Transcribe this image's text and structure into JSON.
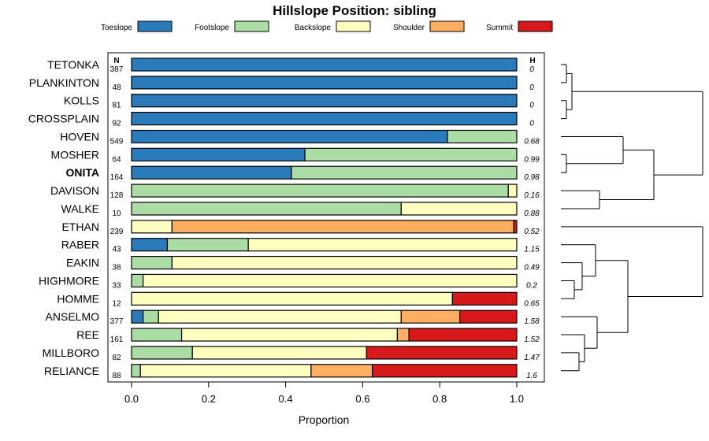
{
  "chart_data": {
    "type": "stacked-bar-horizontal",
    "title": "Hillslope Position: sibling",
    "xlabel": "Proportion",
    "xlim": [
      0,
      1
    ],
    "xticks": [
      "0.0",
      "0.2",
      "0.4",
      "0.6",
      "0.8",
      "1.0"
    ],
    "n_header": "N",
    "h_header": "H",
    "legend": [
      {
        "name": "Toeslope",
        "color": "#2B7BBA"
      },
      {
        "name": "Footslope",
        "color": "#ABDDA4"
      },
      {
        "name": "Backslope",
        "color": "#FFFFBF"
      },
      {
        "name": "Shoulder",
        "color": "#FDAE61"
      },
      {
        "name": "Summit",
        "color": "#D7191C"
      }
    ],
    "rows": [
      {
        "name": "TETONKA",
        "n": "387",
        "h": "0",
        "bold": false,
        "values": [
          1.0,
          0,
          0,
          0,
          0
        ]
      },
      {
        "name": "PLANKINTON",
        "n": "48",
        "h": "0",
        "bold": false,
        "values": [
          1.0,
          0,
          0,
          0,
          0
        ]
      },
      {
        "name": "KOLLS",
        "n": "81",
        "h": "0",
        "bold": false,
        "values": [
          1.0,
          0,
          0,
          0,
          0
        ]
      },
      {
        "name": "CROSSPLAIN",
        "n": "92",
        "h": "0",
        "bold": false,
        "values": [
          1.0,
          0,
          0,
          0,
          0
        ]
      },
      {
        "name": "HOVEN",
        "n": "549",
        "h": "0.68",
        "bold": false,
        "values": [
          0.82,
          0.18,
          0,
          0,
          0
        ]
      },
      {
        "name": "MOSHER",
        "n": "64",
        "h": "0.99",
        "bold": false,
        "values": [
          0.45,
          0.55,
          0,
          0,
          0
        ]
      },
      {
        "name": "ONITA",
        "n": "164",
        "h": "0.98",
        "bold": true,
        "values": [
          0.415,
          0.585,
          0,
          0,
          0
        ]
      },
      {
        "name": "DAVISON",
        "n": "128",
        "h": "0.16",
        "bold": false,
        "values": [
          0,
          0.978,
          0.022,
          0,
          0
        ]
      },
      {
        "name": "WALKE",
        "n": "10",
        "h": "0.88",
        "bold": false,
        "values": [
          0,
          0.7,
          0.3,
          0,
          0
        ]
      },
      {
        "name": "ETHAN",
        "n": "239",
        "h": "0.52",
        "bold": false,
        "values": [
          0,
          0,
          0.105,
          0.887,
          0.008
        ]
      },
      {
        "name": "RABER",
        "n": "43",
        "h": "1.15",
        "bold": false,
        "values": [
          0.093,
          0.21,
          0.697,
          0,
          0
        ]
      },
      {
        "name": "EAKIN",
        "n": "38",
        "h": "0.49",
        "bold": false,
        "values": [
          0,
          0.105,
          0.895,
          0,
          0
        ]
      },
      {
        "name": "HIGHMORE",
        "n": "33",
        "h": "0.2",
        "bold": false,
        "values": [
          0,
          0.03,
          0.97,
          0,
          0
        ]
      },
      {
        "name": "HOMME",
        "n": "12",
        "h": "0.65",
        "bold": false,
        "values": [
          0,
          0,
          0.833,
          0,
          0.167
        ]
      },
      {
        "name": "ANSELMO",
        "n": "377",
        "h": "1.58",
        "bold": false,
        "values": [
          0.03,
          0.04,
          0.63,
          0.152,
          0.148
        ]
      },
      {
        "name": "REE",
        "n": "161",
        "h": "1.52",
        "bold": false,
        "values": [
          0,
          0.13,
          0.56,
          0.03,
          0.28
        ]
      },
      {
        "name": "MILLBORO",
        "n": "82",
        "h": "1.47",
        "bold": false,
        "values": [
          0,
          0.158,
          0.452,
          0,
          0.39
        ]
      },
      {
        "name": "RELIANCE",
        "n": "88",
        "h": "1.6",
        "bold": false,
        "values": [
          0,
          0.023,
          0.443,
          0.159,
          0.375
        ]
      }
    ]
  }
}
